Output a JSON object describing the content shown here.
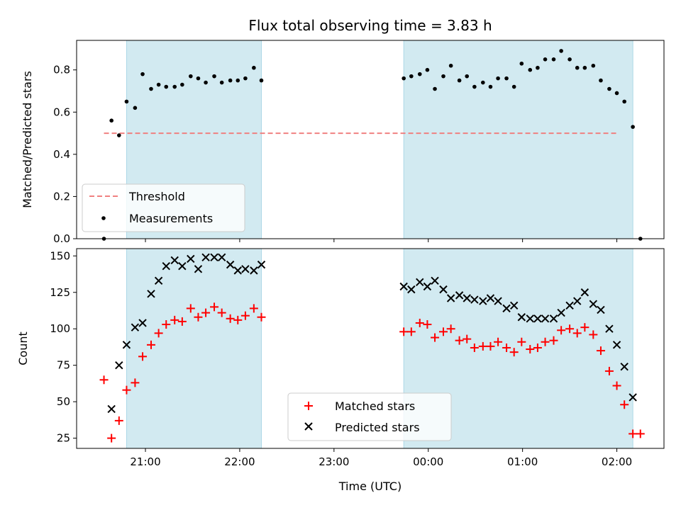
{
  "chart_data": {
    "type": "scatter",
    "title": "Flux total observing time = 3.83 h",
    "xlabel": "Time (UTC)",
    "x_axis_unit": "hours since 21:00 UTC",
    "xlim": [
      -0.73,
      5.5
    ],
    "xticks": [
      {
        "value": 0,
        "label": "21:00"
      },
      {
        "value": 1,
        "label": "22:00"
      },
      {
        "value": 2,
        "label": "23:00"
      },
      {
        "value": 3,
        "label": "00:00"
      },
      {
        "value": 4,
        "label": "01:00"
      },
      {
        "value": 5,
        "label": "02:00"
      }
    ],
    "shaded_spans": [
      [
        -0.2,
        1.23
      ],
      [
        2.74,
        5.17
      ]
    ],
    "shade_color": "#add8e6",
    "panels": [
      {
        "ylabel": "Matched/Predicted stars",
        "ylim": [
          0,
          0.94
        ],
        "yticks": [
          0.0,
          0.2,
          0.4,
          0.6,
          0.8
        ],
        "ytick_labels": [
          "0.0",
          "0.2",
          "0.4",
          "0.6",
          "0.8"
        ],
        "threshold": {
          "name": "Threshold",
          "value": 0.5,
          "x_range": [
            -0.44,
            5.0
          ],
          "color": "#f08080"
        },
        "legend": {
          "placement": "lower-left",
          "threshold_label": "Threshold",
          "measurements_label": "Measurements"
        },
        "series": [
          {
            "name": "Measurements",
            "color": "#000000",
            "marker": "dot",
            "points": [
              [
                -0.44,
                0.0
              ],
              [
                -0.36,
                0.56
              ],
              [
                -0.28,
                0.49
              ],
              [
                -0.2,
                0.65
              ],
              [
                -0.11,
                0.62
              ],
              [
                -0.03,
                0.78
              ],
              [
                0.06,
                0.71
              ],
              [
                0.14,
                0.73
              ],
              [
                0.22,
                0.72
              ],
              [
                0.31,
                0.72
              ],
              [
                0.39,
                0.73
              ],
              [
                0.48,
                0.77
              ],
              [
                0.56,
                0.76
              ],
              [
                0.64,
                0.74
              ],
              [
                0.73,
                0.77
              ],
              [
                0.81,
                0.74
              ],
              [
                0.9,
                0.75
              ],
              [
                0.98,
                0.75
              ],
              [
                1.06,
                0.76
              ],
              [
                1.15,
                0.81
              ],
              [
                1.23,
                0.75
              ],
              [
                2.74,
                0.76
              ],
              [
                2.82,
                0.77
              ],
              [
                2.91,
                0.78
              ],
              [
                2.99,
                0.8
              ],
              [
                3.07,
                0.71
              ],
              [
                3.16,
                0.77
              ],
              [
                3.24,
                0.82
              ],
              [
                3.33,
                0.75
              ],
              [
                3.41,
                0.77
              ],
              [
                3.49,
                0.72
              ],
              [
                3.58,
                0.74
              ],
              [
                3.66,
                0.72
              ],
              [
                3.74,
                0.76
              ],
              [
                3.83,
                0.76
              ],
              [
                3.91,
                0.72
              ],
              [
                3.99,
                0.83
              ],
              [
                4.08,
                0.8
              ],
              [
                4.16,
                0.81
              ],
              [
                4.24,
                0.85
              ],
              [
                4.33,
                0.85
              ],
              [
                4.41,
                0.89
              ],
              [
                4.5,
                0.85
              ],
              [
                4.58,
                0.81
              ],
              [
                4.66,
                0.81
              ],
              [
                4.75,
                0.82
              ],
              [
                4.83,
                0.75
              ],
              [
                4.92,
                0.71
              ],
              [
                5.0,
                0.69
              ],
              [
                5.08,
                0.65
              ],
              [
                5.17,
                0.53
              ],
              [
                5.25,
                0.0
              ]
            ]
          }
        ]
      },
      {
        "ylabel": "Count",
        "ylim": [
          18,
          155
        ],
        "yticks": [
          25,
          50,
          75,
          100,
          125,
          150
        ],
        "ytick_labels": [
          "25",
          "50",
          "75",
          "100",
          "125",
          "150"
        ],
        "legend": {
          "placement": "lower-center",
          "matched_label": "Matched stars",
          "predicted_label": "Predicted stars"
        },
        "series": [
          {
            "name": "Matched stars",
            "color": "#ff0000",
            "marker": "plus",
            "points": [
              [
                -0.44,
                65
              ],
              [
                -0.36,
                25
              ],
              [
                -0.28,
                37
              ],
              [
                -0.2,
                58
              ],
              [
                -0.11,
                63
              ],
              [
                -0.03,
                81
              ],
              [
                0.06,
                89
              ],
              [
                0.14,
                97
              ],
              [
                0.22,
                103
              ],
              [
                0.31,
                106
              ],
              [
                0.39,
                105
              ],
              [
                0.48,
                114
              ],
              [
                0.56,
                108
              ],
              [
                0.64,
                111
              ],
              [
                0.73,
                115
              ],
              [
                0.81,
                111
              ],
              [
                0.9,
                107
              ],
              [
                0.98,
                106
              ],
              [
                1.06,
                109
              ],
              [
                1.15,
                114
              ],
              [
                1.23,
                108
              ],
              [
                2.74,
                98
              ],
              [
                2.82,
                98
              ],
              [
                2.91,
                104
              ],
              [
                2.99,
                103
              ],
              [
                3.07,
                94
              ],
              [
                3.16,
                98
              ],
              [
                3.24,
                100
              ],
              [
                3.33,
                92
              ],
              [
                3.41,
                93
              ],
              [
                3.49,
                87
              ],
              [
                3.58,
                88
              ],
              [
                3.66,
                88
              ],
              [
                3.74,
                91
              ],
              [
                3.83,
                87
              ],
              [
                3.91,
                84
              ],
              [
                3.99,
                91
              ],
              [
                4.08,
                86
              ],
              [
                4.16,
                87
              ],
              [
                4.24,
                91
              ],
              [
                4.33,
                92
              ],
              [
                4.41,
                99
              ],
              [
                4.5,
                100
              ],
              [
                4.58,
                97
              ],
              [
                4.66,
                101
              ],
              [
                4.75,
                96
              ],
              [
                4.83,
                85
              ],
              [
                4.92,
                71
              ],
              [
                5.0,
                61
              ],
              [
                5.08,
                48
              ],
              [
                5.17,
                28
              ],
              [
                5.25,
                28
              ]
            ]
          },
          {
            "name": "Predicted stars",
            "color": "#000000",
            "marker": "x",
            "points": [
              [
                -0.36,
                45
              ],
              [
                -0.28,
                75
              ],
              [
                -0.2,
                89
              ],
              [
                -0.11,
                101
              ],
              [
                -0.03,
                104
              ],
              [
                0.06,
                124
              ],
              [
                0.14,
                133
              ],
              [
                0.22,
                143
              ],
              [
                0.31,
                147
              ],
              [
                0.39,
                143
              ],
              [
                0.48,
                148
              ],
              [
                0.56,
                141
              ],
              [
                0.64,
                149
              ],
              [
                0.73,
                149
              ],
              [
                0.81,
                149
              ],
              [
                0.9,
                144
              ],
              [
                0.98,
                140
              ],
              [
                1.06,
                141
              ],
              [
                1.15,
                140
              ],
              [
                1.23,
                144
              ],
              [
                2.74,
                129
              ],
              [
                2.82,
                127
              ],
              [
                2.91,
                132
              ],
              [
                2.99,
                129
              ],
              [
                3.07,
                133
              ],
              [
                3.16,
                127
              ],
              [
                3.24,
                121
              ],
              [
                3.33,
                123
              ],
              [
                3.41,
                121
              ],
              [
                3.49,
                120
              ],
              [
                3.58,
                119
              ],
              [
                3.66,
                121
              ],
              [
                3.74,
                119
              ],
              [
                3.83,
                114
              ],
              [
                3.91,
                116
              ],
              [
                3.99,
                108
              ],
              [
                4.08,
                107
              ],
              [
                4.16,
                107
              ],
              [
                4.24,
                107
              ],
              [
                4.33,
                107
              ],
              [
                4.41,
                111
              ],
              [
                4.5,
                116
              ],
              [
                4.58,
                119
              ],
              [
                4.66,
                125
              ],
              [
                4.75,
                117
              ],
              [
                4.83,
                113
              ],
              [
                4.92,
                100
              ],
              [
                5.0,
                89
              ],
              [
                5.08,
                74
              ],
              [
                5.17,
                53
              ]
            ]
          }
        ]
      }
    ]
  }
}
